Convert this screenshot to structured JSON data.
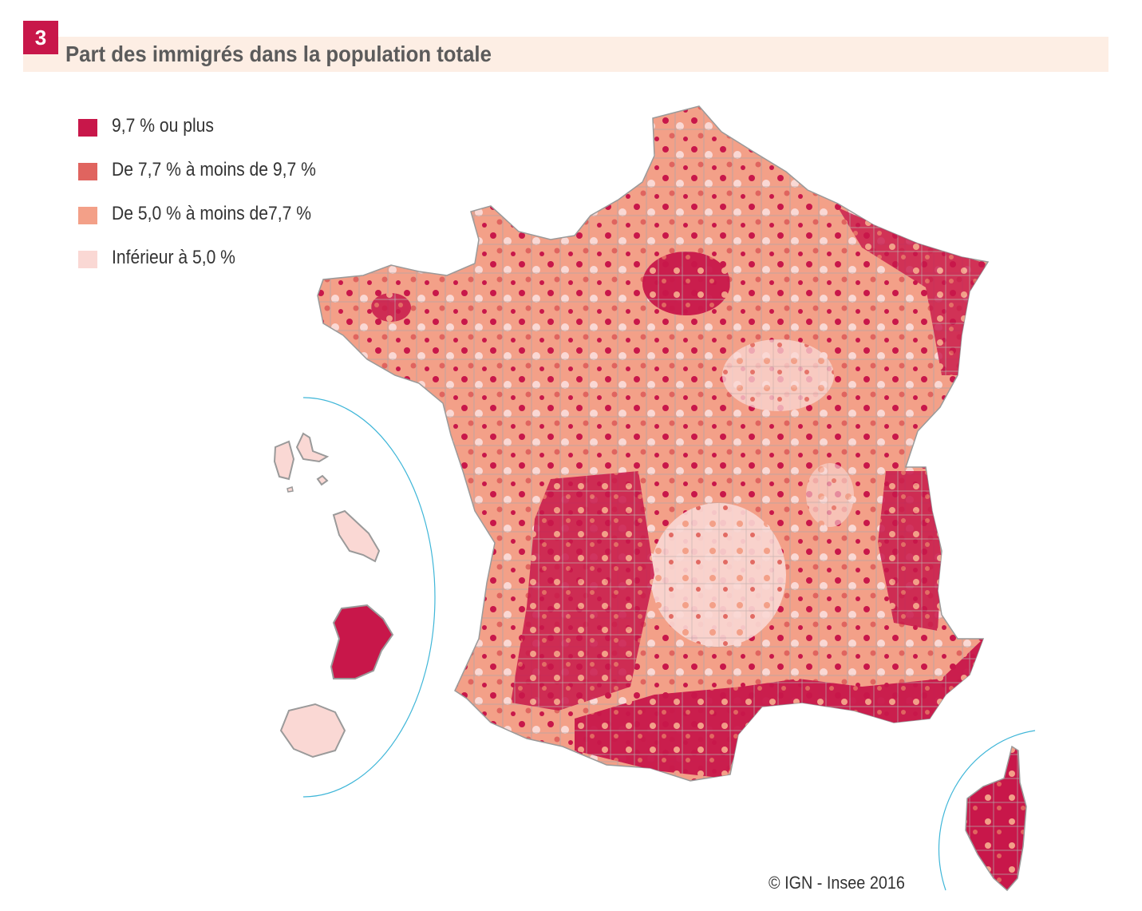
{
  "header": {
    "figure_number": "3",
    "title": "Part des immigrés dans la population totale"
  },
  "legend": {
    "items": [
      {
        "label": "9,7 % ou plus",
        "color": "#c8174a"
      },
      {
        "label": "De 7,7 % à moins de 9,7 %",
        "color": "#e0645f"
      },
      {
        "label": "De 5,0 % à moins de7,7 %",
        "color": "#f3a088"
      },
      {
        "label": "Inférieur à 5,0 %",
        "color": "#fad8d4"
      }
    ]
  },
  "source": "© IGN - Insee 2016",
  "colors": {
    "accent": "#c8174a",
    "inset_arc": "#3fb6d8",
    "border_gray": "#9a9a9a"
  }
}
